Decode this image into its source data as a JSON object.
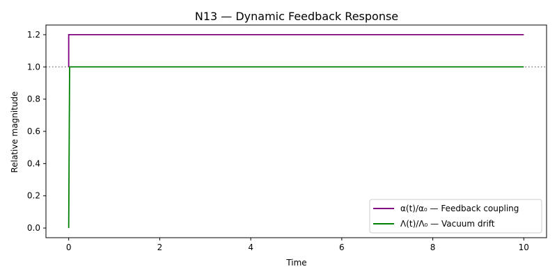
{
  "chart_data": {
    "type": "line",
    "title": "N13 — Dynamic Feedback Response",
    "xlabel": "Time",
    "ylabel": "Relative magnitude",
    "xlim": [
      -0.5,
      10.5
    ],
    "ylim": [
      -0.06,
      1.26
    ],
    "xticks": [
      0,
      2,
      4,
      6,
      8,
      10
    ],
    "xtick_labels": [
      "0",
      "2",
      "4",
      "6",
      "8",
      "10"
    ],
    "yticks": [
      0.0,
      0.2,
      0.4,
      0.6,
      0.8,
      1.0,
      1.2
    ],
    "ytick_labels": [
      "0.0",
      "0.2",
      "0.4",
      "0.6",
      "0.8",
      "1.0",
      "1.2"
    ],
    "grid": false,
    "legend_position": "lower-right",
    "reference_line": {
      "y": 1.0,
      "style": "dotted",
      "color": "#808080"
    },
    "series": [
      {
        "name": "α(t)/α₀ — Feedback coupling",
        "color": "#800080",
        "x": [
          0,
          0,
          10
        ],
        "y": [
          1.0,
          1.2,
          1.2
        ]
      },
      {
        "name": "Λ(t)/Λ₀ — Vacuum drift",
        "color": "#008000",
        "x": [
          0,
          0.02,
          10
        ],
        "y": [
          0.0,
          1.0,
          1.0
        ]
      }
    ]
  }
}
